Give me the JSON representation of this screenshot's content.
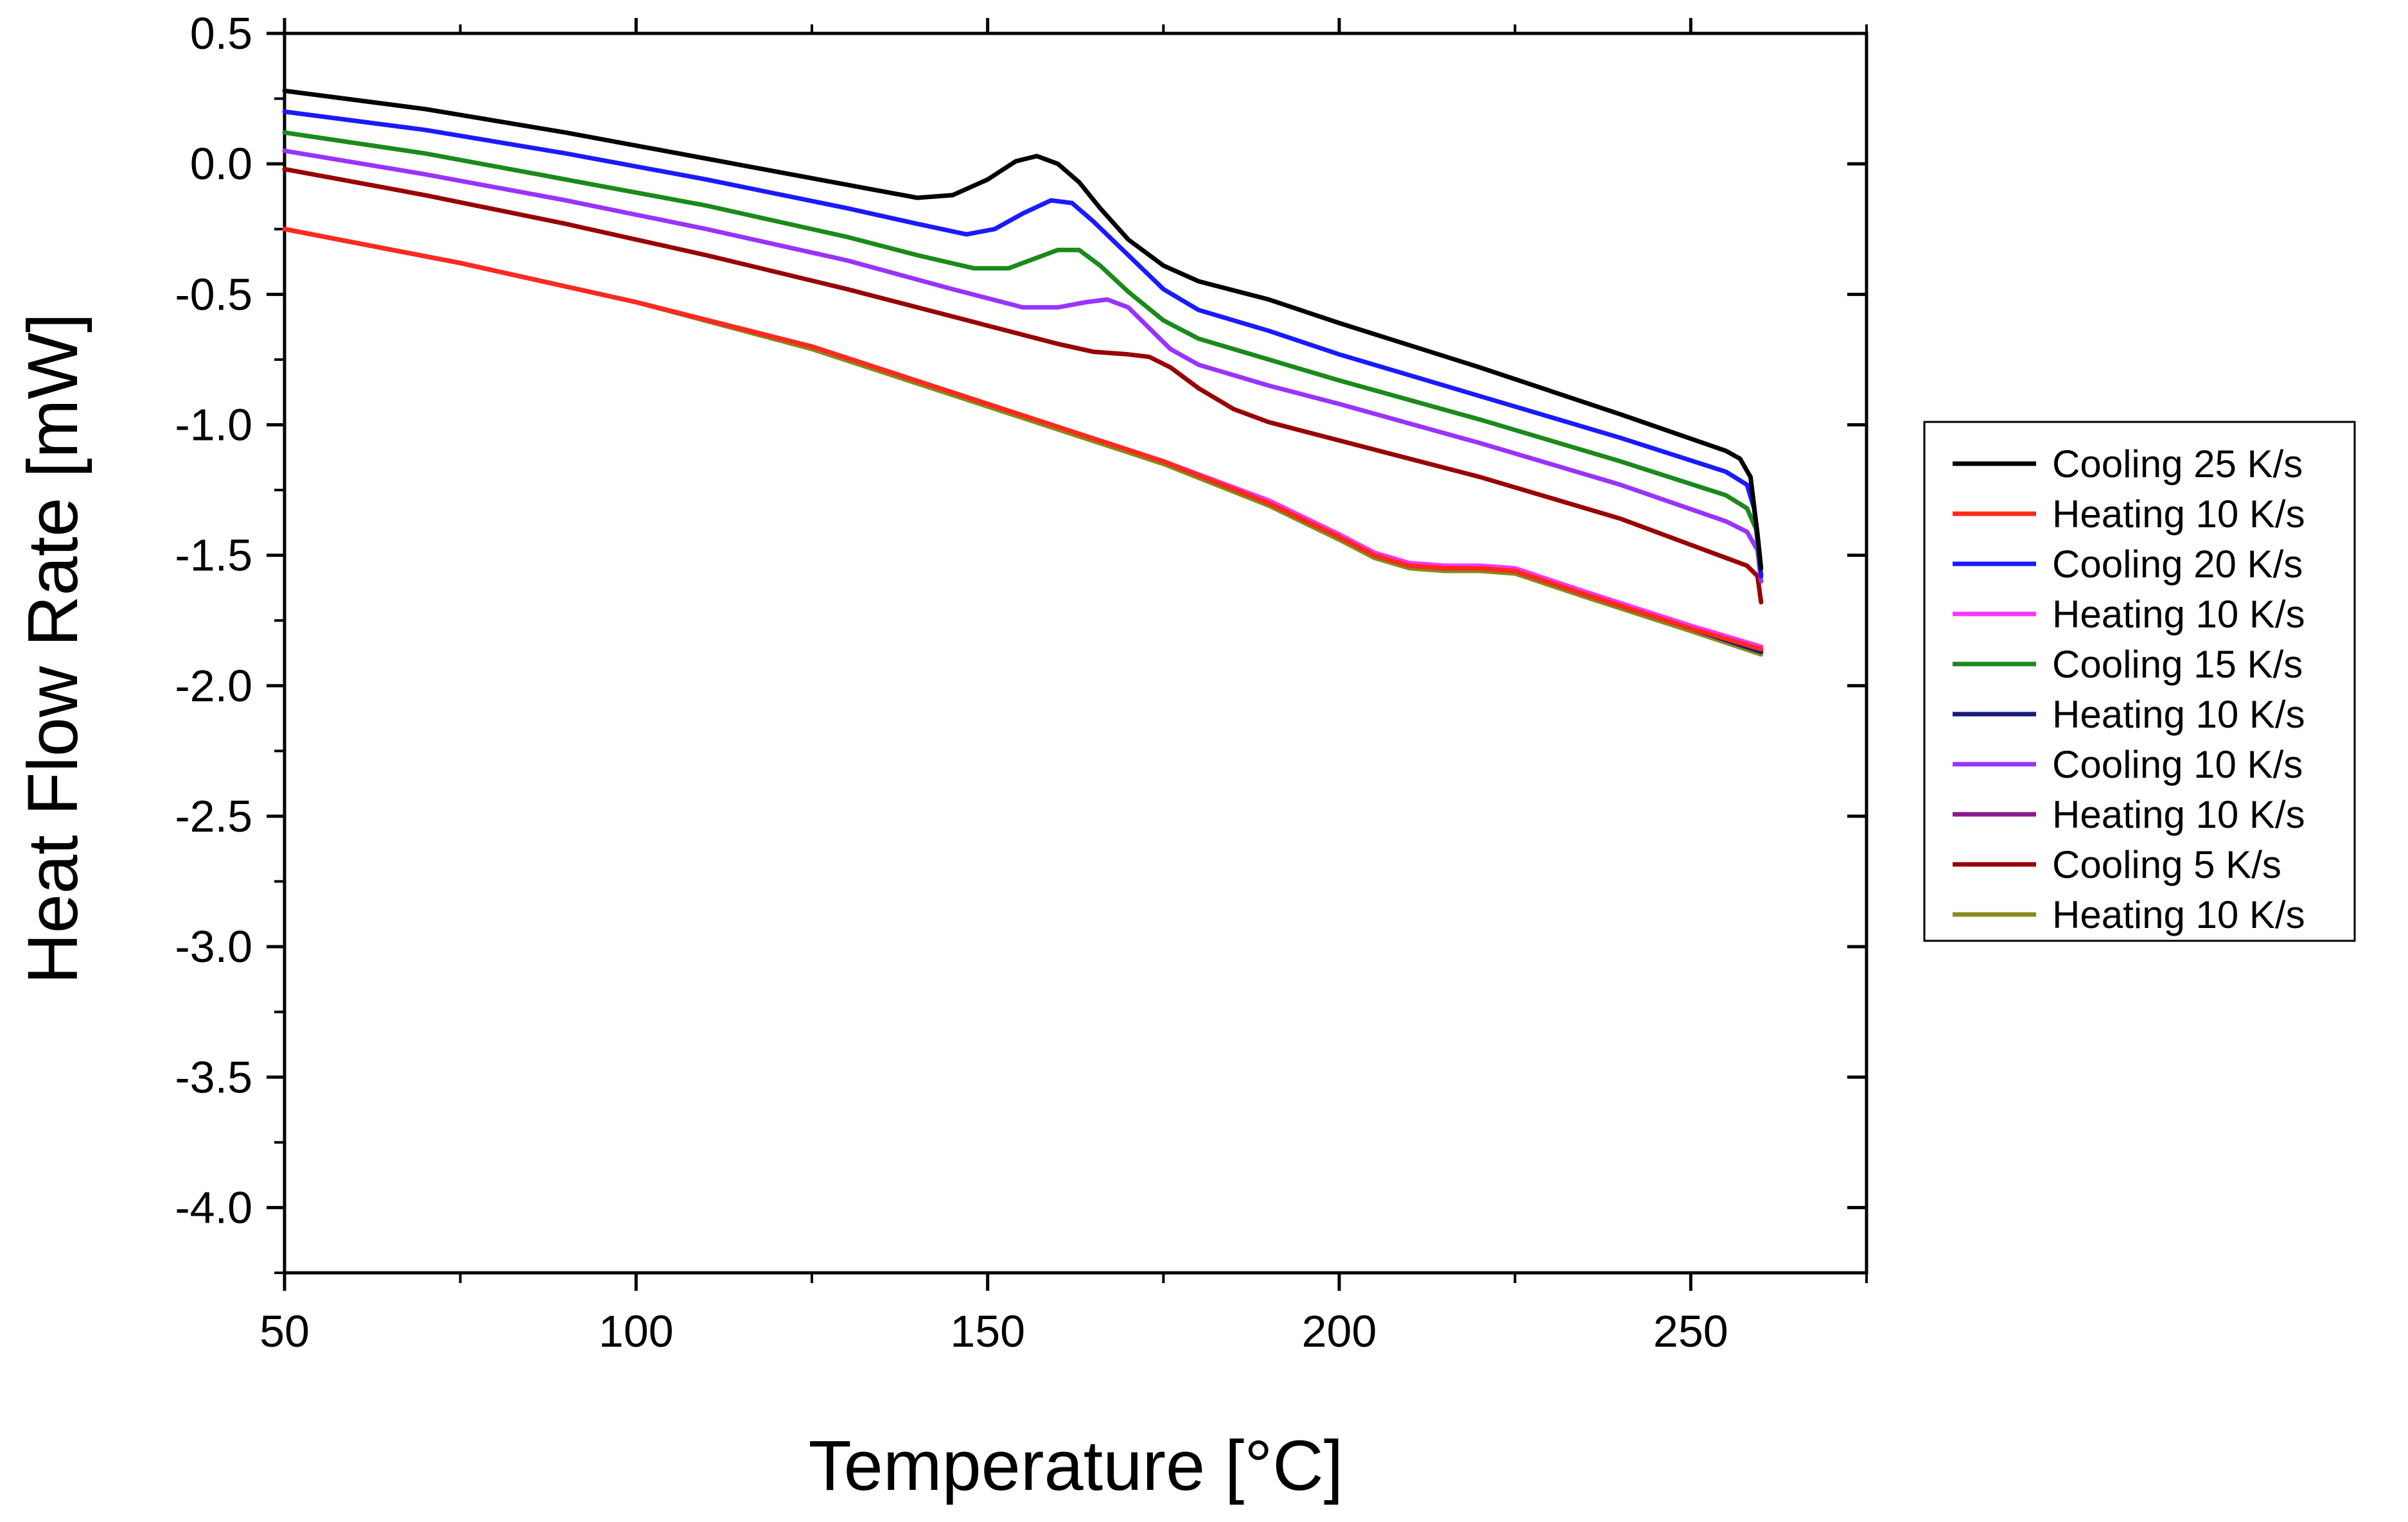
{
  "chart_data": {
    "type": "line",
    "title": "",
    "xlabel": "Temperature [°C]",
    "ylabel": "Heat Flow Rate [mW]",
    "xlim": [
      50,
      275
    ],
    "ylim": [
      -4.25,
      0.5
    ],
    "x_ticks": [
      50,
      100,
      150,
      200,
      250
    ],
    "x_tick_labels": [
      "50",
      "100",
      "150",
      "200",
      "250"
    ],
    "x_minor_ticks": [
      75,
      125,
      175,
      225,
      275
    ],
    "y_ticks": [
      0.5,
      0.0,
      -0.5,
      -1.0,
      -1.5,
      -2.0,
      -2.5,
      -3.0,
      -3.5,
      -4.0
    ],
    "y_tick_labels": [
      "0.5",
      "0.0",
      "-0.5",
      "-1.0",
      "-1.5",
      "-2.0",
      "-2.5",
      "-3.0",
      "-3.5",
      "-4.0"
    ],
    "grid": false,
    "legend_position": "right",
    "series": [
      {
        "name": "Cooling 25 K/s",
        "color": "#000000",
        "points": [
          [
            50,
            0.28
          ],
          [
            70,
            0.21
          ],
          [
            90,
            0.12
          ],
          [
            110,
            0.02
          ],
          [
            130,
            -0.08
          ],
          [
            140,
            -0.13
          ],
          [
            145,
            -0.12
          ],
          [
            150,
            -0.06
          ],
          [
            154,
            0.01
          ],
          [
            157,
            0.03
          ],
          [
            160,
            0.0
          ],
          [
            163,
            -0.07
          ],
          [
            166,
            -0.17
          ],
          [
            170,
            -0.29
          ],
          [
            175,
            -0.39
          ],
          [
            180,
            -0.45
          ],
          [
            190,
            -0.52
          ],
          [
            200,
            -0.61
          ],
          [
            220,
            -0.78
          ],
          [
            240,
            -0.96
          ],
          [
            255,
            -1.1
          ],
          [
            257,
            -1.13
          ],
          [
            258.5,
            -1.2
          ],
          [
            259.5,
            -1.42
          ],
          [
            260,
            -1.55
          ]
        ]
      },
      {
        "name": "Heating 10 K/s",
        "color": "#ff2a1a",
        "points": [
          [
            50,
            -0.25
          ],
          [
            75,
            -0.38
          ],
          [
            100,
            -0.53
          ],
          [
            125,
            -0.7
          ],
          [
            150,
            -0.92
          ],
          [
            175,
            -1.14
          ],
          [
            190,
            -1.3
          ],
          [
            200,
            -1.43
          ],
          [
            205,
            -1.5
          ],
          [
            210,
            -1.54
          ],
          [
            215,
            -1.55
          ],
          [
            220,
            -1.55
          ],
          [
            225,
            -1.56
          ],
          [
            235,
            -1.65
          ],
          [
            250,
            -1.78
          ],
          [
            260,
            -1.86
          ]
        ]
      },
      {
        "name": "Cooling 20 K/s",
        "color": "#1a1aff",
        "points": [
          [
            50,
            0.2
          ],
          [
            70,
            0.13
          ],
          [
            90,
            0.04
          ],
          [
            110,
            -0.06
          ],
          [
            130,
            -0.17
          ],
          [
            140,
            -0.23
          ],
          [
            147,
            -0.27
          ],
          [
            151,
            -0.25
          ],
          [
            155,
            -0.19
          ],
          [
            159,
            -0.14
          ],
          [
            162,
            -0.15
          ],
          [
            165,
            -0.22
          ],
          [
            170,
            -0.35
          ],
          [
            175,
            -0.48
          ],
          [
            180,
            -0.56
          ],
          [
            190,
            -0.64
          ],
          [
            200,
            -0.73
          ],
          [
            220,
            -0.89
          ],
          [
            240,
            -1.05
          ],
          [
            255,
            -1.18
          ],
          [
            258,
            -1.23
          ],
          [
            259,
            -1.32
          ],
          [
            259.6,
            -1.45
          ],
          [
            260,
            -1.58
          ]
        ]
      },
      {
        "name": "Heating 10 K/s",
        "color": "#ff33ff",
        "points": [
          [
            50,
            -0.25
          ],
          [
            75,
            -0.38
          ],
          [
            100,
            -0.53
          ],
          [
            125,
            -0.7
          ],
          [
            150,
            -0.92
          ],
          [
            175,
            -1.14
          ],
          [
            190,
            -1.29
          ],
          [
            200,
            -1.42
          ],
          [
            205,
            -1.49
          ],
          [
            210,
            -1.53
          ],
          [
            215,
            -1.54
          ],
          [
            220,
            -1.54
          ],
          [
            225,
            -1.55
          ],
          [
            235,
            -1.64
          ],
          [
            250,
            -1.77
          ],
          [
            260,
            -1.85
          ]
        ]
      },
      {
        "name": "Cooling 15 K/s",
        "color": "#1a8a1a",
        "points": [
          [
            50,
            0.12
          ],
          [
            70,
            0.04
          ],
          [
            90,
            -0.06
          ],
          [
            110,
            -0.16
          ],
          [
            130,
            -0.28
          ],
          [
            140,
            -0.35
          ],
          [
            148,
            -0.4
          ],
          [
            153,
            -0.4
          ],
          [
            157,
            -0.36
          ],
          [
            160,
            -0.33
          ],
          [
            163,
            -0.33
          ],
          [
            166,
            -0.39
          ],
          [
            170,
            -0.49
          ],
          [
            175,
            -0.6
          ],
          [
            180,
            -0.67
          ],
          [
            190,
            -0.75
          ],
          [
            200,
            -0.83
          ],
          [
            220,
            -0.98
          ],
          [
            240,
            -1.14
          ],
          [
            255,
            -1.27
          ],
          [
            258,
            -1.32
          ],
          [
            259.3,
            -1.4
          ],
          [
            260,
            -1.58
          ]
        ]
      },
      {
        "name": "Heating 10 K/s",
        "color": "#1a1a80",
        "points": [
          [
            50,
            -0.25
          ],
          [
            75,
            -0.38
          ],
          [
            100,
            -0.53
          ],
          [
            125,
            -0.7
          ],
          [
            150,
            -0.92
          ],
          [
            175,
            -1.14
          ],
          [
            190,
            -1.3
          ],
          [
            200,
            -1.43
          ],
          [
            205,
            -1.5
          ],
          [
            210,
            -1.54
          ],
          [
            215,
            -1.55
          ],
          [
            220,
            -1.55
          ],
          [
            225,
            -1.56
          ],
          [
            235,
            -1.65
          ],
          [
            250,
            -1.78
          ],
          [
            260,
            -1.87
          ]
        ]
      },
      {
        "name": "Cooling 10 K/s",
        "color": "#9933ff",
        "points": [
          [
            50,
            0.05
          ],
          [
            70,
            -0.04
          ],
          [
            90,
            -0.14
          ],
          [
            110,
            -0.25
          ],
          [
            130,
            -0.37
          ],
          [
            145,
            -0.48
          ],
          [
            155,
            -0.55
          ],
          [
            160,
            -0.55
          ],
          [
            164,
            -0.53
          ],
          [
            167,
            -0.52
          ],
          [
            170,
            -0.55
          ],
          [
            173,
            -0.63
          ],
          [
            176,
            -0.71
          ],
          [
            180,
            -0.77
          ],
          [
            190,
            -0.85
          ],
          [
            200,
            -0.92
          ],
          [
            220,
            -1.07
          ],
          [
            240,
            -1.23
          ],
          [
            255,
            -1.37
          ],
          [
            258,
            -1.41
          ],
          [
            259.5,
            -1.48
          ],
          [
            260,
            -1.6
          ]
        ]
      },
      {
        "name": "Heating 10 K/s",
        "color": "#8a1a8a",
        "points": [
          [
            50,
            -0.25
          ],
          [
            75,
            -0.38
          ],
          [
            100,
            -0.53
          ],
          [
            125,
            -0.7
          ],
          [
            150,
            -0.92
          ],
          [
            175,
            -1.14
          ],
          [
            190,
            -1.3
          ],
          [
            200,
            -1.43
          ],
          [
            205,
            -1.5
          ],
          [
            210,
            -1.54
          ],
          [
            215,
            -1.55
          ],
          [
            220,
            -1.55
          ],
          [
            225,
            -1.56
          ],
          [
            235,
            -1.65
          ],
          [
            250,
            -1.78
          ],
          [
            260,
            -1.87
          ]
        ]
      },
      {
        "name": "Cooling 5  K/s",
        "color": "#990000",
        "points": [
          [
            50,
            -0.02
          ],
          [
            70,
            -0.12
          ],
          [
            90,
            -0.23
          ],
          [
            110,
            -0.35
          ],
          [
            130,
            -0.48
          ],
          [
            150,
            -0.62
          ],
          [
            160,
            -0.69
          ],
          [
            165,
            -0.72
          ],
          [
            170,
            -0.73
          ],
          [
            173,
            -0.74
          ],
          [
            176,
            -0.78
          ],
          [
            180,
            -0.86
          ],
          [
            185,
            -0.94
          ],
          [
            190,
            -0.99
          ],
          [
            200,
            -1.06
          ],
          [
            220,
            -1.2
          ],
          [
            240,
            -1.36
          ],
          [
            255,
            -1.51
          ],
          [
            258,
            -1.54
          ],
          [
            259.5,
            -1.58
          ],
          [
            260,
            -1.68
          ]
        ]
      },
      {
        "name": "Heating 10 K/s",
        "color": "#8a8a1a",
        "points": [
          [
            50,
            -0.25
          ],
          [
            75,
            -0.38
          ],
          [
            100,
            -0.53
          ],
          [
            125,
            -0.71
          ],
          [
            150,
            -0.93
          ],
          [
            175,
            -1.15
          ],
          [
            190,
            -1.31
          ],
          [
            200,
            -1.44
          ],
          [
            205,
            -1.51
          ],
          [
            210,
            -1.55
          ],
          [
            215,
            -1.56
          ],
          [
            220,
            -1.56
          ],
          [
            225,
            -1.57
          ],
          [
            235,
            -1.66
          ],
          [
            250,
            -1.79
          ],
          [
            260,
            -1.88
          ]
        ]
      }
    ]
  }
}
